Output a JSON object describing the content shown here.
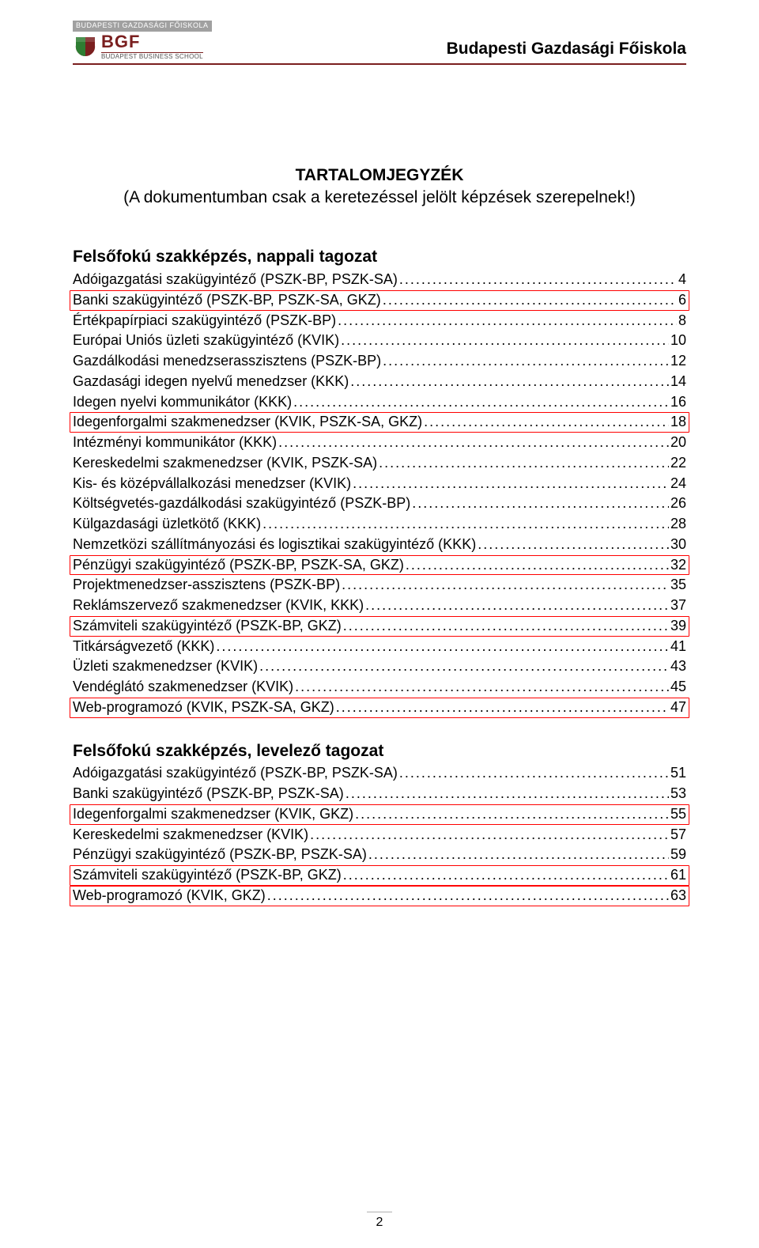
{
  "header": {
    "logo_top": "BUDAPESTI GAZDASÁGI FŐISKOLA",
    "logo_main": "BGF",
    "logo_sub": "BUDAPEST BUSINESS SCHOOL",
    "right_title": "Budapesti Gazdasági Főiskola"
  },
  "title": "TARTALOMJEGYZÉK",
  "subtitle": "(A dokumentumban csak a keretezéssel jelölt képzések szerepelnek!)",
  "page_number": "2",
  "sections": [
    {
      "heading": "Felsőfokú szakképzés, nappali tagozat",
      "entries": [
        {
          "label": "Adóigazgatási szakügyintéző (PSZK-BP, PSZK-SA)",
          "page": "4",
          "framed": false
        },
        {
          "label": "Banki szakügyintéző (PSZK-BP, PSZK-SA, GKZ)",
          "page": "6",
          "framed": true
        },
        {
          "label": "Értékpapírpiaci szakügyintéző (PSZK-BP)",
          "page": "8",
          "framed": false
        },
        {
          "label": "Európai Uniós üzleti szakügyintéző (KVIK)",
          "page": "10",
          "framed": false
        },
        {
          "label": "Gazdálkodási menedzserasszisztens (PSZK-BP)",
          "page": "12",
          "framed": false
        },
        {
          "label": "Gazdasági idegen nyelvű menedzser (KKK)",
          "page": "14",
          "framed": false
        },
        {
          "label": "Idegen nyelvi kommunikátor (KKK)",
          "page": "16",
          "framed": false
        },
        {
          "label": "Idegenforgalmi szakmenedzser (KVIK, PSZK-SA, GKZ)",
          "page": "18",
          "framed": true
        },
        {
          "label": "Intézményi kommunikátor (KKK)",
          "page": "20",
          "framed": false
        },
        {
          "label": "Kereskedelmi szakmenedzser (KVIK, PSZK-SA)",
          "page": "22",
          "framed": false
        },
        {
          "label": "Kis- és középvállalkozási menedzser (KVIK)",
          "page": "24",
          "framed": false
        },
        {
          "label": "Költségvetés-gazdálkodási szakügyintéző (PSZK-BP)",
          "page": "26",
          "framed": false
        },
        {
          "label": "Külgazdasági üzletkötő (KKK)",
          "page": "28",
          "framed": false
        },
        {
          "label": "Nemzetközi szállítmányozási és logisztikai szakügyintéző (KKK)",
          "page": "30",
          "framed": false
        },
        {
          "label": "Pénzügyi szakügyintéző (PSZK-BP, PSZK-SA, GKZ)",
          "page": "32",
          "framed": true
        },
        {
          "label": "Projektmenedzser-asszisztens (PSZK-BP)",
          "page": "35",
          "framed": false
        },
        {
          "label": "Reklámszervező szakmenedzser (KVIK, KKK)",
          "page": "37",
          "framed": false
        },
        {
          "label": "Számviteli szakügyintéző (PSZK-BP, GKZ)",
          "page": "39",
          "framed": true
        },
        {
          "label": "Titkárságvezető (KKK)",
          "page": "41",
          "framed": false
        },
        {
          "label": "Üzleti szakmenedzser (KVIK)",
          "page": "43",
          "framed": false
        },
        {
          "label": "Vendéglátó szakmenedzser (KVIK)",
          "page": "45",
          "framed": false
        },
        {
          "label": "Web-programozó (KVIK, PSZK-SA, GKZ)",
          "page": "47",
          "framed": true
        }
      ]
    },
    {
      "heading": "Felsőfokú szakképzés, levelező tagozat",
      "entries": [
        {
          "label": "Adóigazgatási szakügyintéző (PSZK-BP, PSZK-SA)",
          "page": "51",
          "framed": false
        },
        {
          "label": "Banki szakügyintéző (PSZK-BP, PSZK-SA)",
          "page": "53",
          "framed": false
        },
        {
          "label": "Idegenforgalmi szakmenedzser (KVIK, GKZ)",
          "page": "55",
          "framed": true
        },
        {
          "label": "Kereskedelmi szakmenedzser (KVIK)",
          "page": "57",
          "framed": false
        },
        {
          "label": "Pénzügyi szakügyintéző (PSZK-BP, PSZK-SA)",
          "page": "59",
          "framed": false
        },
        {
          "label": "Számviteli szakügyintéző (PSZK-BP, GKZ)",
          "page": "61",
          "framed": true
        },
        {
          "label": "Web-programozó (KVIK, GKZ)",
          "page": "63",
          "framed": true
        }
      ]
    }
  ],
  "colors": {
    "accent": "#7a1f1f",
    "frame": "#ff0000",
    "text": "#000000",
    "background": "#ffffff"
  }
}
